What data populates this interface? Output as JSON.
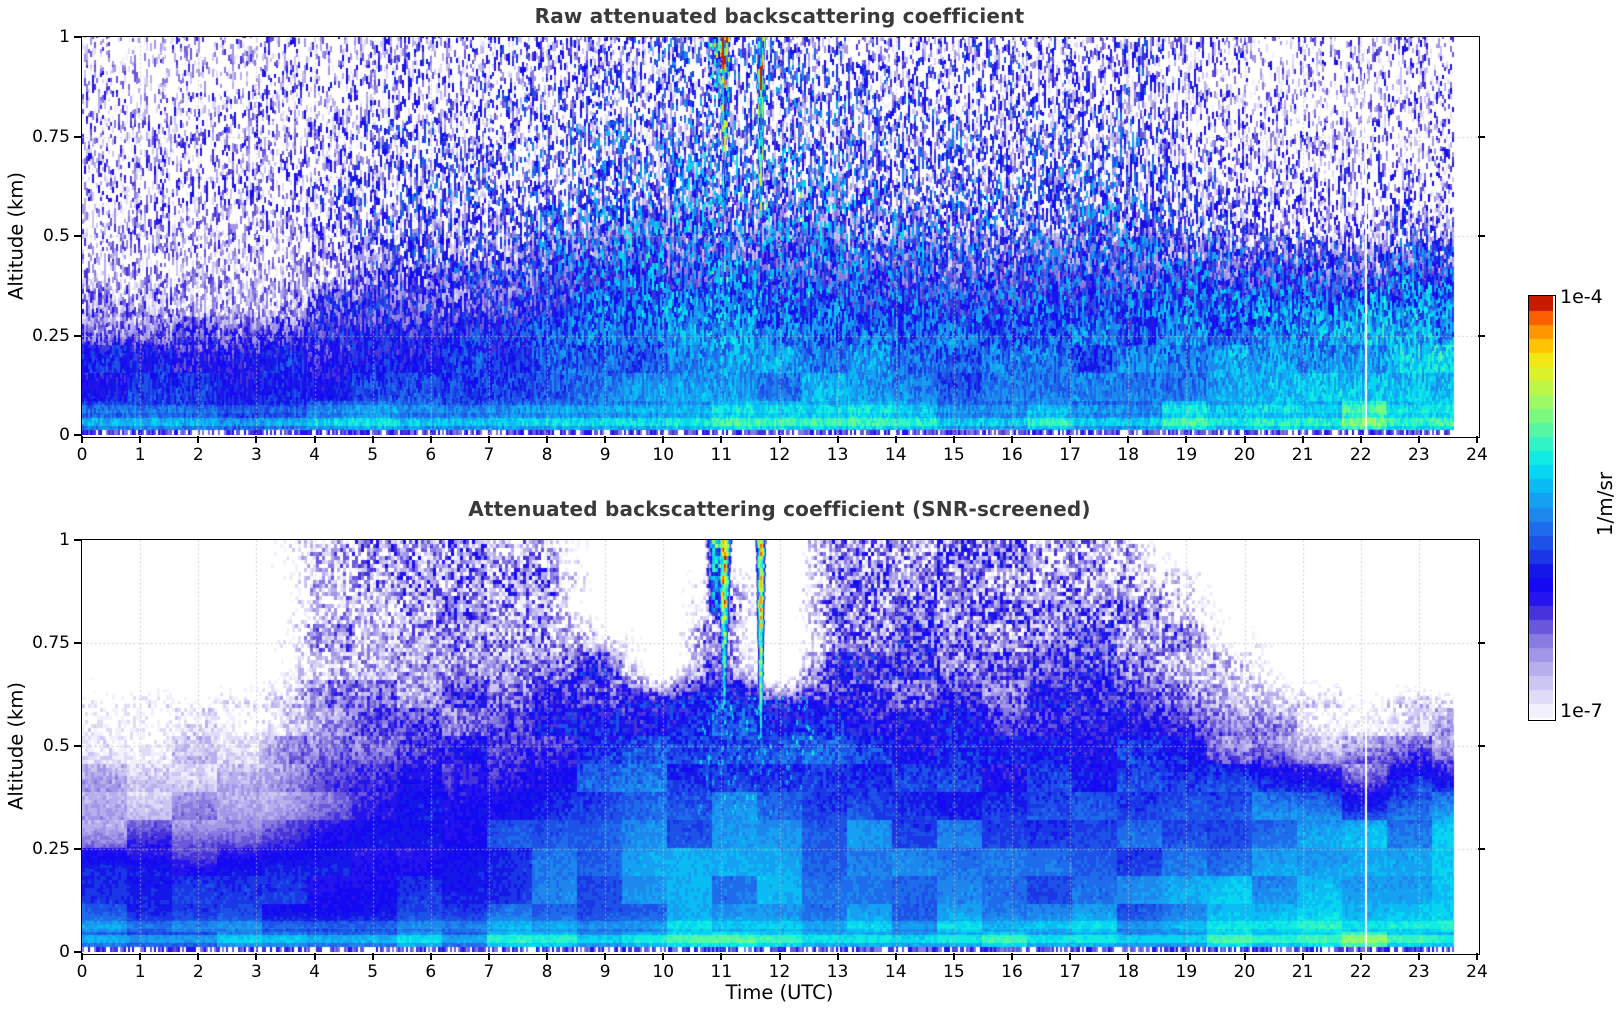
{
  "figure": {
    "background": "#ffffff",
    "title_color": "#3a3a3a"
  },
  "colorbar": {
    "top_label": "1e-4",
    "bottom_label": "1e-7",
    "unit": "1/m/sr",
    "steps": 30,
    "orientation": "vertical"
  },
  "colormap": {
    "anchors": [
      [
        0.0,
        "#faf9ff"
      ],
      [
        0.04,
        "#e6e3fa"
      ],
      [
        0.09,
        "#c8c2f2"
      ],
      [
        0.14,
        "#a89ee9"
      ],
      [
        0.18,
        "#8a7de1"
      ],
      [
        0.22,
        "#6655da"
      ],
      [
        0.26,
        "#3d28dd"
      ],
      [
        0.3,
        "#1405f8"
      ],
      [
        0.34,
        "#130ee9"
      ],
      [
        0.38,
        "#1b33e6"
      ],
      [
        0.43,
        "#1e5ce9"
      ],
      [
        0.48,
        "#1e84ee"
      ],
      [
        0.53,
        "#12aaf2"
      ],
      [
        0.57,
        "#05ccf5"
      ],
      [
        0.61,
        "#0ae9e9"
      ],
      [
        0.65,
        "#2ff4c5"
      ],
      [
        0.69,
        "#5ef79c"
      ],
      [
        0.73,
        "#8afa74"
      ],
      [
        0.77,
        "#b0f954"
      ],
      [
        0.81,
        "#d4f42e"
      ],
      [
        0.85,
        "#f2e713"
      ],
      [
        0.88,
        "#fec803"
      ],
      [
        0.91,
        "#ffa100"
      ],
      [
        0.94,
        "#ff7000"
      ],
      [
        0.965,
        "#f34800"
      ],
      [
        0.98,
        "#d51f00"
      ],
      [
        1.0,
        "#870000"
      ]
    ]
  },
  "chart_data": [
    {
      "type": "heatmap",
      "title": "Raw attenuated backscattering coefficient",
      "xlabel": "",
      "ylabel": "Altitude (km)",
      "unit": "1/m/sr",
      "xlim": [
        0,
        24
      ],
      "ylim": [
        0,
        1
      ],
      "x_ticks": [
        0,
        1,
        2,
        3,
        4,
        5,
        6,
        7,
        8,
        9,
        10,
        11,
        12,
        13,
        14,
        15,
        16,
        17,
        18,
        19,
        20,
        21,
        22,
        23,
        24
      ],
      "y_ticks": [
        0,
        0.25,
        0.5,
        0.75,
        1
      ],
      "value_scale": "log10",
      "vmin": 1e-07,
      "vmax": 0.0001,
      "grid_on": true,
      "data_end_utc": 23.6,
      "gap_utc": 22.07,
      "grid": {
        "hours": [
          0,
          1,
          2,
          3,
          4,
          5,
          6,
          7,
          8,
          9,
          10,
          11,
          12,
          13,
          14,
          15,
          16,
          17,
          18,
          19,
          20,
          21,
          22,
          23,
          24
        ],
        "altitudes_km": [
          0.03,
          0.1,
          0.2,
          0.3,
          0.4,
          0.5,
          0.6,
          0.7,
          0.85,
          1.0
        ],
        "log10_values": [
          [
            -5.55,
            -5.55,
            -5.55,
            -5.55,
            -5.5,
            -5.5,
            -5.5,
            -5.45,
            -5.4,
            -5.35,
            -5.3,
            -5.3,
            -5.3,
            -5.3,
            -5.35,
            -5.35,
            -5.35,
            -5.35,
            -5.35,
            -5.3,
            -5.25,
            -5.2,
            -5.15,
            -5.15,
            -5.15
          ],
          [
            -5.9,
            -5.9,
            -5.9,
            -5.9,
            -5.9,
            -5.85,
            -5.8,
            -5.8,
            -5.7,
            -5.6,
            -5.5,
            -5.5,
            -5.5,
            -5.5,
            -5.55,
            -5.6,
            -5.6,
            -5.6,
            -5.6,
            -5.5,
            -5.4,
            -5.35,
            -5.3,
            -5.25,
            -5.25
          ],
          [
            -6.0,
            -6.0,
            -6.0,
            -6.0,
            -6.0,
            -5.95,
            -5.9,
            -5.85,
            -5.75,
            -5.65,
            -5.55,
            -5.5,
            -5.5,
            -5.55,
            -5.6,
            -5.65,
            -5.65,
            -5.65,
            -5.65,
            -5.6,
            -5.5,
            -5.45,
            -5.4,
            -5.35,
            -5.35
          ],
          [
            -6.5,
            -6.55,
            -6.5,
            -6.5,
            -6.3,
            -6.1,
            -6.1,
            -5.95,
            -5.85,
            -5.7,
            -5.6,
            -5.6,
            -5.6,
            -5.65,
            -5.7,
            -5.75,
            -5.75,
            -5.75,
            -5.75,
            -5.7,
            -5.6,
            -5.55,
            -5.5,
            -5.45,
            -5.45
          ],
          [
            -6.7,
            -6.75,
            -6.7,
            -6.7,
            -6.5,
            -6.2,
            -6.2,
            -6.05,
            -5.95,
            -5.8,
            -5.7,
            -5.7,
            -5.7,
            -5.75,
            -5.85,
            -5.9,
            -5.9,
            -5.9,
            -5.9,
            -5.85,
            -5.8,
            -5.9,
            -5.95,
            -5.75,
            -5.75
          ],
          [
            -6.8,
            -6.85,
            -6.8,
            -6.8,
            -6.6,
            -6.3,
            -6.3,
            -6.15,
            -6.05,
            -5.9,
            -5.8,
            -5.8,
            -5.8,
            -5.85,
            -5.95,
            -6.05,
            -6.05,
            -6.0,
            -6.0,
            -6.1,
            -6.3,
            -6.5,
            -6.55,
            -6.35,
            -6.35
          ],
          [
            -6.85,
            -6.9,
            -6.85,
            -6.85,
            -6.7,
            -6.4,
            -6.4,
            -6.3,
            -6.2,
            -6.05,
            -5.95,
            -5.9,
            -5.95,
            -6.0,
            -6.1,
            -6.2,
            -6.2,
            -6.1,
            -6.1,
            -6.3,
            -6.6,
            -6.75,
            -6.8,
            -6.65,
            -6.65
          ],
          [
            -6.9,
            -6.95,
            -6.9,
            -6.9,
            -6.8,
            -6.55,
            -6.55,
            -6.5,
            -6.4,
            -6.25,
            -6.1,
            -6.05,
            -6.1,
            -6.15,
            -6.3,
            -6.4,
            -6.4,
            -6.3,
            -6.3,
            -6.5,
            -6.75,
            -6.85,
            -6.9,
            -6.8,
            -6.8
          ],
          [
            -6.95,
            -7.0,
            -6.95,
            -6.95,
            -6.9,
            -6.7,
            -6.7,
            -6.6,
            -6.55,
            -6.45,
            -6.3,
            -6.25,
            -6.3,
            -6.35,
            -6.5,
            -6.6,
            -6.6,
            -6.5,
            -6.55,
            -6.7,
            -6.9,
            -6.95,
            -6.95,
            -6.9,
            -6.9
          ],
          [
            -7.0,
            -7.05,
            -7.0,
            -7.0,
            -6.95,
            -6.8,
            -6.8,
            -6.7,
            -6.65,
            -6.55,
            -6.45,
            -6.4,
            -6.45,
            -6.5,
            -6.6,
            -6.7,
            -6.7,
            -6.6,
            -6.65,
            -6.8,
            -6.95,
            -7.0,
            -7.0,
            -6.95,
            -6.95
          ]
        ]
      },
      "features": {
        "precip_streaks": [
          {
            "t": 11.05,
            "width_h": 0.07,
            "z_bottom": 0.62,
            "log10_top": -4.35,
            "log10_bottom": -5.3
          },
          {
            "t": 11.68,
            "width_h": 0.05,
            "z_bottom": 0.54,
            "log10_top": -4.3,
            "log10_bottom": -5.1
          }
        ],
        "cloud_blob": {
          "t": 10.9,
          "width_h": 0.13,
          "z_bottom": 0.82,
          "log10": -5.0
        },
        "virga_speckle": {
          "t_range": [
            10.6,
            12.6
          ],
          "z_range": [
            0.32,
            0.62
          ],
          "log10": -5.4
        },
        "surface_bands": [
          {
            "z_range": [
              0.022,
              0.042
            ],
            "boost": 0.22
          },
          {
            "z_range": [
              0.055,
              0.075
            ],
            "boost": 0.12
          }
        ]
      }
    },
    {
      "type": "heatmap",
      "title": "Attenuated backscattering coefficient (SNR-screened)",
      "xlabel": "Time (UTC)",
      "ylabel": "Altitude (km)",
      "unit": "1/m/sr",
      "xlim": [
        0,
        24
      ],
      "ylim": [
        0,
        1
      ],
      "x_ticks": [
        0,
        1,
        2,
        3,
        4,
        5,
        6,
        7,
        8,
        9,
        10,
        11,
        12,
        13,
        14,
        15,
        16,
        17,
        18,
        19,
        20,
        21,
        22,
        23,
        24
      ],
      "y_ticks": [
        0,
        0.25,
        0.5,
        0.75,
        1
      ],
      "value_scale": "log10",
      "vmin": 1e-07,
      "vmax": 0.0001,
      "grid_on": true,
      "data_end_utc": 23.6,
      "gap_utc": 22.07,
      "grid": {
        "hours": [
          0,
          1,
          2,
          3,
          4,
          5,
          6,
          7,
          8,
          9,
          10,
          11,
          12,
          13,
          14,
          15,
          16,
          17,
          18,
          19,
          20,
          21,
          22,
          23,
          24
        ],
        "altitudes_km": [
          0.03,
          0.1,
          0.2,
          0.3,
          0.4,
          0.5,
          0.6,
          0.7,
          0.85,
          1.0
        ],
        "log10_values": [
          [
            -5.55,
            -5.55,
            -5.55,
            -5.55,
            -5.5,
            -5.5,
            -5.5,
            -5.45,
            -5.4,
            -5.35,
            -5.3,
            -5.3,
            -5.3,
            -5.3,
            -5.35,
            -5.35,
            -5.35,
            -5.35,
            -5.35,
            -5.3,
            -5.25,
            -5.2,
            -5.15,
            -5.15,
            -5.15
          ],
          [
            -5.9,
            -5.9,
            -5.9,
            -5.9,
            -5.9,
            -5.85,
            -5.8,
            -5.8,
            -5.7,
            -5.6,
            -5.5,
            -5.5,
            -5.5,
            -5.5,
            -5.55,
            -5.6,
            -5.6,
            -5.6,
            -5.6,
            -5.5,
            -5.4,
            -5.35,
            -5.3,
            -5.25,
            -5.25
          ],
          [
            -6.0,
            -6.0,
            -6.0,
            -6.0,
            -6.0,
            -5.95,
            -5.9,
            -5.85,
            -5.75,
            -5.65,
            -5.55,
            -5.5,
            -5.5,
            -5.55,
            -5.6,
            -5.65,
            -5.65,
            -5.65,
            -5.65,
            -5.6,
            -5.5,
            -5.45,
            -5.4,
            -5.35,
            -5.35
          ],
          [
            -6.45,
            -6.5,
            -6.45,
            -6.45,
            -6.25,
            -6.1,
            -6.05,
            -5.95,
            -5.85,
            -5.7,
            -5.6,
            -5.6,
            -5.55,
            -5.6,
            -5.7,
            -5.75,
            -5.75,
            -5.75,
            -5.75,
            -5.7,
            -5.6,
            -5.55,
            -5.5,
            -5.45,
            -5.45
          ],
          [
            -6.65,
            -6.7,
            -6.65,
            -6.65,
            -6.4,
            -6.2,
            -6.15,
            -6.05,
            -5.95,
            -5.8,
            -5.7,
            -5.7,
            -5.65,
            -5.75,
            -5.85,
            -5.9,
            -5.9,
            -5.9,
            -5.9,
            -5.85,
            -5.8,
            -5.95,
            -6.15,
            -5.85,
            -5.85
          ],
          [
            -6.85,
            -6.9,
            -6.85,
            -6.85,
            -6.5,
            -6.3,
            -6.25,
            -6.1,
            -6.05,
            -5.95,
            -5.85,
            -5.8,
            -5.8,
            -5.85,
            -5.95,
            -6.05,
            -6.05,
            -6.0,
            -6.0,
            -6.1,
            -6.35,
            -6.6,
            -6.7,
            -6.5,
            -6.5
          ],
          [
            -6.95,
            -7.0,
            -6.95,
            -6.95,
            -6.6,
            -6.4,
            -6.35,
            -6.25,
            -6.2,
            -6.1,
            -6.0,
            -5.9,
            -5.95,
            -6.0,
            -6.1,
            -6.2,
            -6.2,
            -6.1,
            -6.1,
            -6.35,
            -6.7,
            -6.9,
            -6.95,
            -6.75,
            -6.75
          ],
          [
            null,
            null,
            null,
            null,
            -6.7,
            -6.5,
            -6.45,
            -6.4,
            -6.35,
            -6.25,
            null,
            -6.1,
            null,
            -6.2,
            -6.3,
            -6.35,
            -6.35,
            -6.3,
            -6.3,
            -6.55,
            -6.95,
            null,
            null,
            null,
            null
          ],
          [
            null,
            null,
            null,
            null,
            -6.8,
            -6.6,
            -6.55,
            -6.5,
            -6.45,
            null,
            null,
            -6.35,
            null,
            -6.35,
            -6.4,
            -6.45,
            -6.45,
            -6.4,
            -6.5,
            -6.8,
            null,
            null,
            null,
            null,
            null
          ],
          [
            null,
            null,
            null,
            null,
            -6.9,
            -6.7,
            -6.65,
            -6.6,
            -6.55,
            null,
            null,
            null,
            null,
            -6.5,
            -6.5,
            -6.55,
            -6.55,
            -6.5,
            -6.6,
            null,
            null,
            null,
            null,
            null,
            null
          ]
        ]
      },
      "features": {
        "precip_streaks": [
          {
            "t": 11.05,
            "width_h": 0.07,
            "z_bottom": 0.62,
            "log10_top": -4.35,
            "log10_bottom": -5.3
          },
          {
            "t": 11.68,
            "width_h": 0.05,
            "z_bottom": 0.54,
            "log10_top": -4.3,
            "log10_bottom": -5.1
          }
        ],
        "cloud_blob": {
          "t": 10.9,
          "width_h": 0.13,
          "z_bottom": 0.82,
          "log10": -5.0
        },
        "virga_speckle": {
          "t_range": [
            10.6,
            12.6
          ],
          "z_range": [
            0.32,
            0.62
          ],
          "log10": -5.4
        },
        "surface_bands": [
          {
            "z_range": [
              0.022,
              0.042
            ],
            "boost": 0.22
          },
          {
            "z_range": [
              0.055,
              0.075
            ],
            "boost": 0.12
          }
        ]
      }
    }
  ]
}
